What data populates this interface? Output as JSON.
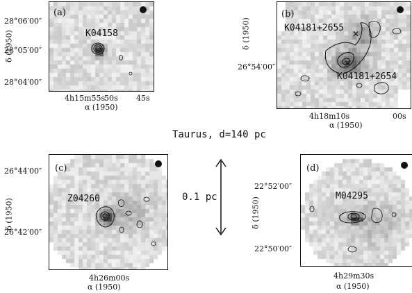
{
  "figure": {
    "center_title": "Taurus, d=140 pc",
    "scale_label": "0.1 pc"
  },
  "panels": [
    {
      "id": "a",
      "label": "(a)",
      "sources": [
        "K04158"
      ],
      "y_axis_label": "δ (1950)",
      "x_axis_label": "α (1950)",
      "y_ticks": [
        "28°06′00″",
        "28°05′00″",
        "28°04′00″"
      ],
      "x_ticks": [
        "4h15m55s",
        "50s",
        "45s"
      ]
    },
    {
      "id": "b",
      "label": "(b)",
      "sources": [
        "K04181+2655",
        "K04181+2654"
      ],
      "y_axis_label": "δ (1950)",
      "x_axis_label": "α (1950)",
      "y_ticks": [
        "26°54′00″"
      ],
      "x_ticks": [
        "4h18m10s",
        "00s"
      ]
    },
    {
      "id": "c",
      "label": "(c)",
      "sources": [
        "Z04260"
      ],
      "y_axis_label": "δ (1950)",
      "x_axis_label": "α (1950)",
      "y_ticks": [
        "26°44′00″",
        "26°42′00″"
      ],
      "x_ticks": [
        "4h26m00s"
      ]
    },
    {
      "id": "d",
      "label": "(d)",
      "sources": [
        "M04295"
      ],
      "y_axis_label": "δ (1950)",
      "x_axis_label": "α (1950)",
      "y_ticks": [
        "22°52′00″",
        "22°50′00″"
      ],
      "x_ticks": [
        "4h29m30s"
      ]
    }
  ]
}
